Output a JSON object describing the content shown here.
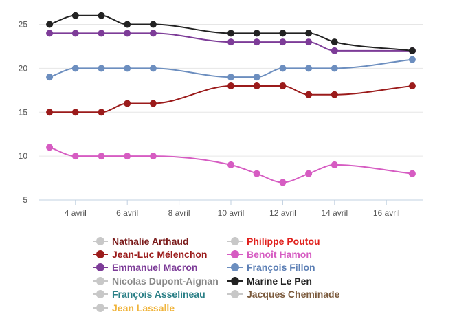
{
  "chart_data": {
    "type": "line",
    "title": "",
    "xlabel": "",
    "ylabel": "",
    "x_days": [
      3,
      4,
      5,
      6,
      7,
      10,
      11,
      12,
      13,
      14,
      17
    ],
    "xlim": [
      2.6,
      17.4
    ],
    "ylim": [
      5,
      27
    ],
    "x_ticks": [
      {
        "day": 4,
        "label": "4 avril"
      },
      {
        "day": 6,
        "label": "6 avril"
      },
      {
        "day": 8,
        "label": "8 avril"
      },
      {
        "day": 10,
        "label": "10 avril"
      },
      {
        "day": 12,
        "label": "12 avril"
      },
      {
        "day": 14,
        "label": "14 avril"
      },
      {
        "day": 16,
        "label": "16 avril"
      }
    ],
    "y_ticks": [
      5,
      10,
      15,
      20,
      25
    ],
    "grid": "horizontal",
    "legend_position": "bottom",
    "series": [
      {
        "name": "Nathalie Arthaud",
        "color": "#c8c8c8",
        "label_color": "#7a1a1a",
        "visible": false,
        "values": []
      },
      {
        "name": "Philippe Poutou",
        "color": "#c8c8c8",
        "label_color": "#e0201c",
        "visible": false,
        "values": []
      },
      {
        "name": "Jean-Luc Mélenchon",
        "color": "#9b1b1b",
        "label_color": "#9b1b1b",
        "visible": true,
        "values": [
          15,
          15,
          15,
          16,
          16,
          18,
          18,
          18,
          17,
          17,
          18
        ]
      },
      {
        "name": "Benoît Hamon",
        "color": "#d65cc2",
        "label_color": "#d65cc2",
        "visible": true,
        "values": [
          11,
          10,
          10,
          10,
          10,
          9,
          8,
          7,
          8,
          9,
          8
        ]
      },
      {
        "name": "Emmanuel Macron",
        "color": "#7d3c98",
        "label_color": "#7d3c98",
        "visible": true,
        "values": [
          24,
          24,
          24,
          24,
          24,
          23,
          23,
          23,
          23,
          22,
          22
        ]
      },
      {
        "name": "François Fillon",
        "color": "#6c8ebf",
        "label_color": "#5c7fb5",
        "visible": true,
        "values": [
          19,
          20,
          20,
          20,
          20,
          19,
          19,
          20,
          20,
          20,
          21
        ]
      },
      {
        "name": "Nicolas Dupont-Aignan",
        "color": "#c8c8c8",
        "label_color": "#888888",
        "visible": false,
        "values": []
      },
      {
        "name": "Marine Le Pen",
        "color": "#222222",
        "label_color": "#222222",
        "visible": true,
        "values": [
          25,
          26,
          26,
          25,
          25,
          24,
          24,
          24,
          24,
          23,
          22
        ]
      },
      {
        "name": "François Asselineau",
        "color": "#c8c8c8",
        "label_color": "#2a7f86",
        "visible": false,
        "values": []
      },
      {
        "name": "Jacques Cheminade",
        "color": "#c8c8c8",
        "label_color": "#7b5a3c",
        "visible": false,
        "values": []
      },
      {
        "name": "Jean Lassalle",
        "color": "#c8c8c8",
        "label_color": "#f0b43c",
        "visible": false,
        "values": []
      }
    ]
  }
}
